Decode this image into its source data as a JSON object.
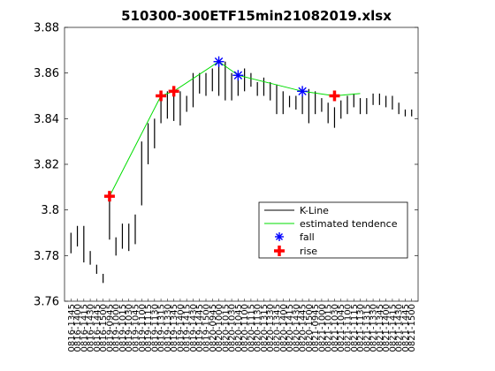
{
  "chart_data": {
    "type": "line",
    "title": "510300-300ETF15min21082019.xlsx",
    "ylim": [
      3.76,
      3.88
    ],
    "yticks": [
      "3.76",
      "3.78",
      "3.8",
      "3.82",
      "3.84",
      "3.86",
      "3.88"
    ],
    "x_tick_labels": [
      "0816-1345",
      "0816-1400",
      "0816-1415",
      "0816-1430",
      "0816-1445",
      "0816-1500",
      "0819-0945",
      "0819-1000",
      "0819-1015",
      "0819-1030",
      "0819-1045",
      "0819-1100",
      "0819-1115",
      "0819-1130",
      "0819-1315",
      "0819-1330",
      "0819-1345",
      "0819-1400",
      "0819-1415",
      "0819-1430",
      "0819-1445",
      "0819-1500",
      "0820-0945",
      "0820-1000",
      "0820-1015",
      "0820-1030",
      "0820-1045",
      "0820-1100",
      "0820-1115",
      "0820-1130",
      "0820-1315",
      "0820-1330",
      "0820-1345",
      "0820-1400",
      "0820-1415",
      "0820-1430",
      "0820-1445",
      "0820-1500",
      "0821-0945",
      "0821-1000",
      "0821-1015",
      "0821-1030",
      "0821-1045",
      "0821-1100",
      "0821-1115",
      "0821-1130",
      "0821-1315",
      "0821-1330",
      "0821-1345",
      "0821-1400",
      "0821-1415",
      "0821-1430",
      "0821-1445",
      "0821-1500"
    ],
    "series": [
      {
        "name": "K-Line",
        "color": "#000000",
        "style": "vertical-range",
        "ranges": [
          [
            3.781,
            3.79
          ],
          [
            3.784,
            3.793
          ],
          [
            3.777,
            3.793
          ],
          [
            3.776,
            3.782
          ],
          [
            3.772,
            3.776
          ],
          [
            3.768,
            3.772
          ],
          [
            3.787,
            3.806
          ],
          [
            3.78,
            3.788
          ],
          [
            3.783,
            3.794
          ],
          [
            3.782,
            3.794
          ],
          [
            3.785,
            3.798
          ],
          [
            3.802,
            3.83
          ],
          [
            3.82,
            3.838
          ],
          [
            3.827,
            3.84
          ],
          [
            3.838,
            3.85
          ],
          [
            3.84,
            3.852
          ],
          [
            3.839,
            3.85
          ],
          [
            3.837,
            3.852
          ],
          [
            3.843,
            3.85
          ],
          [
            3.845,
            3.86
          ],
          [
            3.851,
            3.86
          ],
          [
            3.85,
            3.86
          ],
          [
            3.852,
            3.862
          ],
          [
            3.85,
            3.865
          ],
          [
            3.848,
            3.865
          ],
          [
            3.848,
            3.86
          ],
          [
            3.85,
            3.86
          ],
          [
            3.852,
            3.862
          ],
          [
            3.854,
            3.86
          ],
          [
            3.85,
            3.856
          ],
          [
            3.85,
            3.858
          ],
          [
            3.848,
            3.856
          ],
          [
            3.842,
            3.855
          ],
          [
            3.842,
            3.852
          ],
          [
            3.845,
            3.85
          ],
          [
            3.844,
            3.85
          ],
          [
            3.842,
            3.85
          ],
          [
            3.838,
            3.853
          ],
          [
            3.842,
            3.852
          ],
          [
            3.843,
            3.849
          ],
          [
            3.838,
            3.847
          ],
          [
            3.836,
            3.845
          ],
          [
            3.84,
            3.848
          ],
          [
            3.842,
            3.85
          ],
          [
            3.845,
            3.851
          ],
          [
            3.842,
            3.849
          ],
          [
            3.842,
            3.849
          ],
          [
            3.846,
            3.851
          ],
          [
            3.846,
            3.851
          ],
          [
            3.845,
            3.85
          ],
          [
            3.844,
            3.85
          ],
          [
            3.842,
            3.847
          ],
          [
            3.841,
            3.844
          ],
          [
            3.841,
            3.844
          ]
        ]
      },
      {
        "name": "estimated tendence",
        "color": "#00dd00",
        "x_index": [
          6,
          14,
          16,
          23,
          26,
          36,
          41,
          45
        ],
        "values": [
          3.806,
          3.85,
          3.852,
          3.865,
          3.859,
          3.852,
          3.85,
          3.851
        ]
      },
      {
        "name": "fall",
        "color": "#0000ff",
        "marker": "asterisk",
        "x_index": [
          23,
          26,
          36
        ],
        "values": [
          3.865,
          3.859,
          3.852
        ]
      },
      {
        "name": "rise",
        "color": "#ff0000",
        "marker": "plus",
        "x_index": [
          6,
          14,
          16,
          41
        ],
        "values": [
          3.806,
          3.85,
          3.852,
          3.85
        ]
      }
    ],
    "legend": {
      "placement": "inside-lower-right",
      "entries": [
        "K-Line",
        "estimated tendence",
        "fall",
        "rise"
      ]
    },
    "grid": false
  }
}
